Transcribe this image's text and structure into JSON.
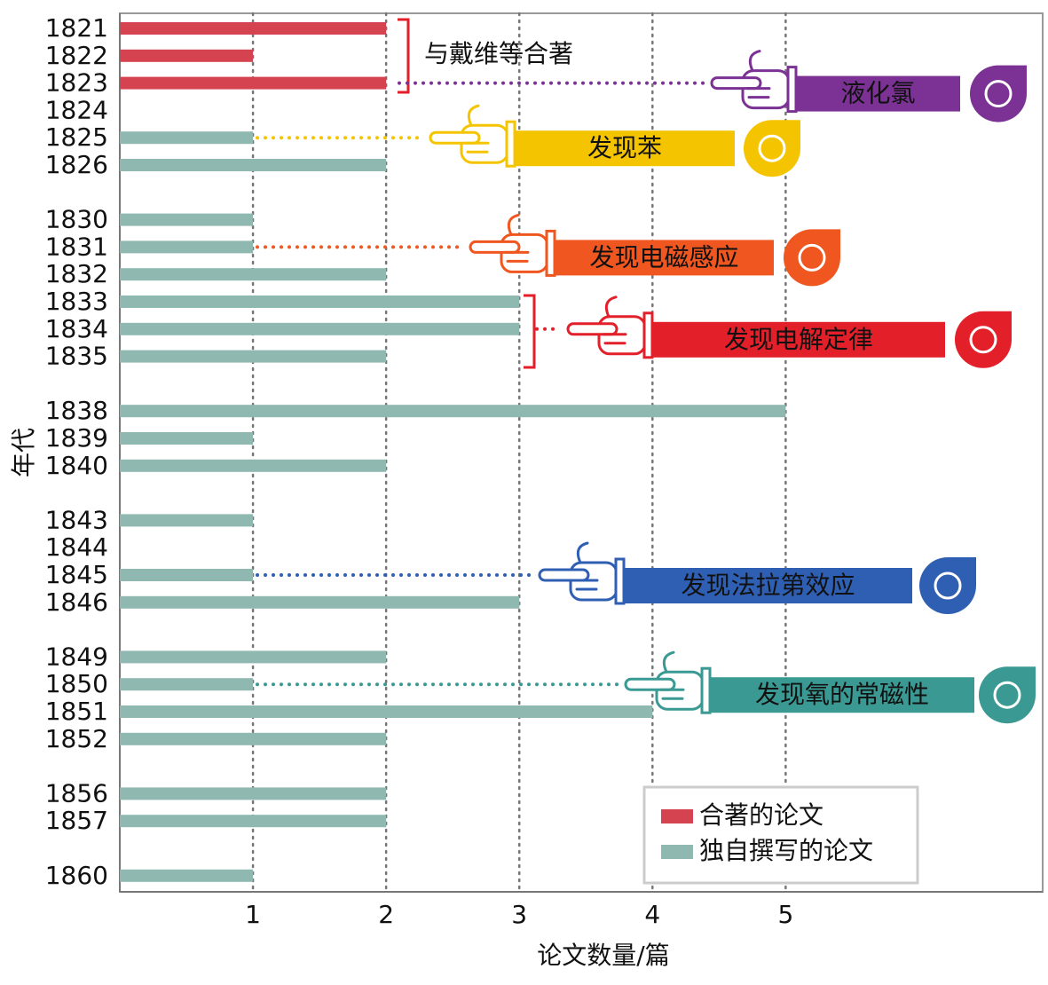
{
  "chart_data": {
    "type": "barh",
    "categories": [
      "1821",
      "1822",
      "1823",
      "1824",
      "1825",
      "1826",
      null,
      "1830",
      "1831",
      "1832",
      "1833",
      "1834",
      "1835",
      null,
      "1838",
      "1839",
      "1840",
      null,
      "1843",
      "1844",
      "1845",
      "1846",
      null,
      "1849",
      "1850",
      "1851",
      "1852",
      null,
      "1856",
      "1857",
      null,
      "1860"
    ],
    "series": [
      {
        "name": "合著的论文",
        "color": "#d4434f",
        "values": [
          2,
          1,
          2,
          null,
          null,
          null,
          null,
          null,
          null,
          null,
          null,
          null,
          null,
          null,
          null,
          null,
          null,
          null,
          null,
          null,
          null,
          null,
          null,
          null,
          null,
          null,
          null,
          null,
          null,
          null,
          null,
          null
        ]
      },
      {
        "name": "独自撰写的论文",
        "color": "#8fb8b1",
        "values": [
          null,
          null,
          null,
          0,
          1,
          2,
          null,
          1,
          1,
          2,
          3,
          3,
          2,
          null,
          5,
          1,
          2,
          null,
          1,
          0,
          1,
          3,
          null,
          2,
          1,
          4,
          2,
          null,
          2,
          2,
          null,
          1
        ]
      }
    ],
    "xlabel": "论文数量/篇",
    "ylabel": "年代",
    "xlim": [
      0,
      6.93
    ],
    "xticks": [
      1,
      2,
      3,
      4,
      5
    ],
    "grid": true,
    "legend": "lower right",
    "note": "与戴维等合著",
    "annotations": [
      {
        "text": "液化氯",
        "color": "#7b3294"
      },
      {
        "text": "发现苯",
        "color": "#f5c400"
      },
      {
        "text": "发现电磁感应",
        "color": "#f0561f"
      },
      {
        "text": "发现电解定律",
        "color": "#e3202a"
      },
      {
        "text": "发现法拉第效应",
        "color": "#2f5fb3"
      },
      {
        "text": "发现氧的常磁性",
        "color": "#3a9a93"
      }
    ]
  }
}
